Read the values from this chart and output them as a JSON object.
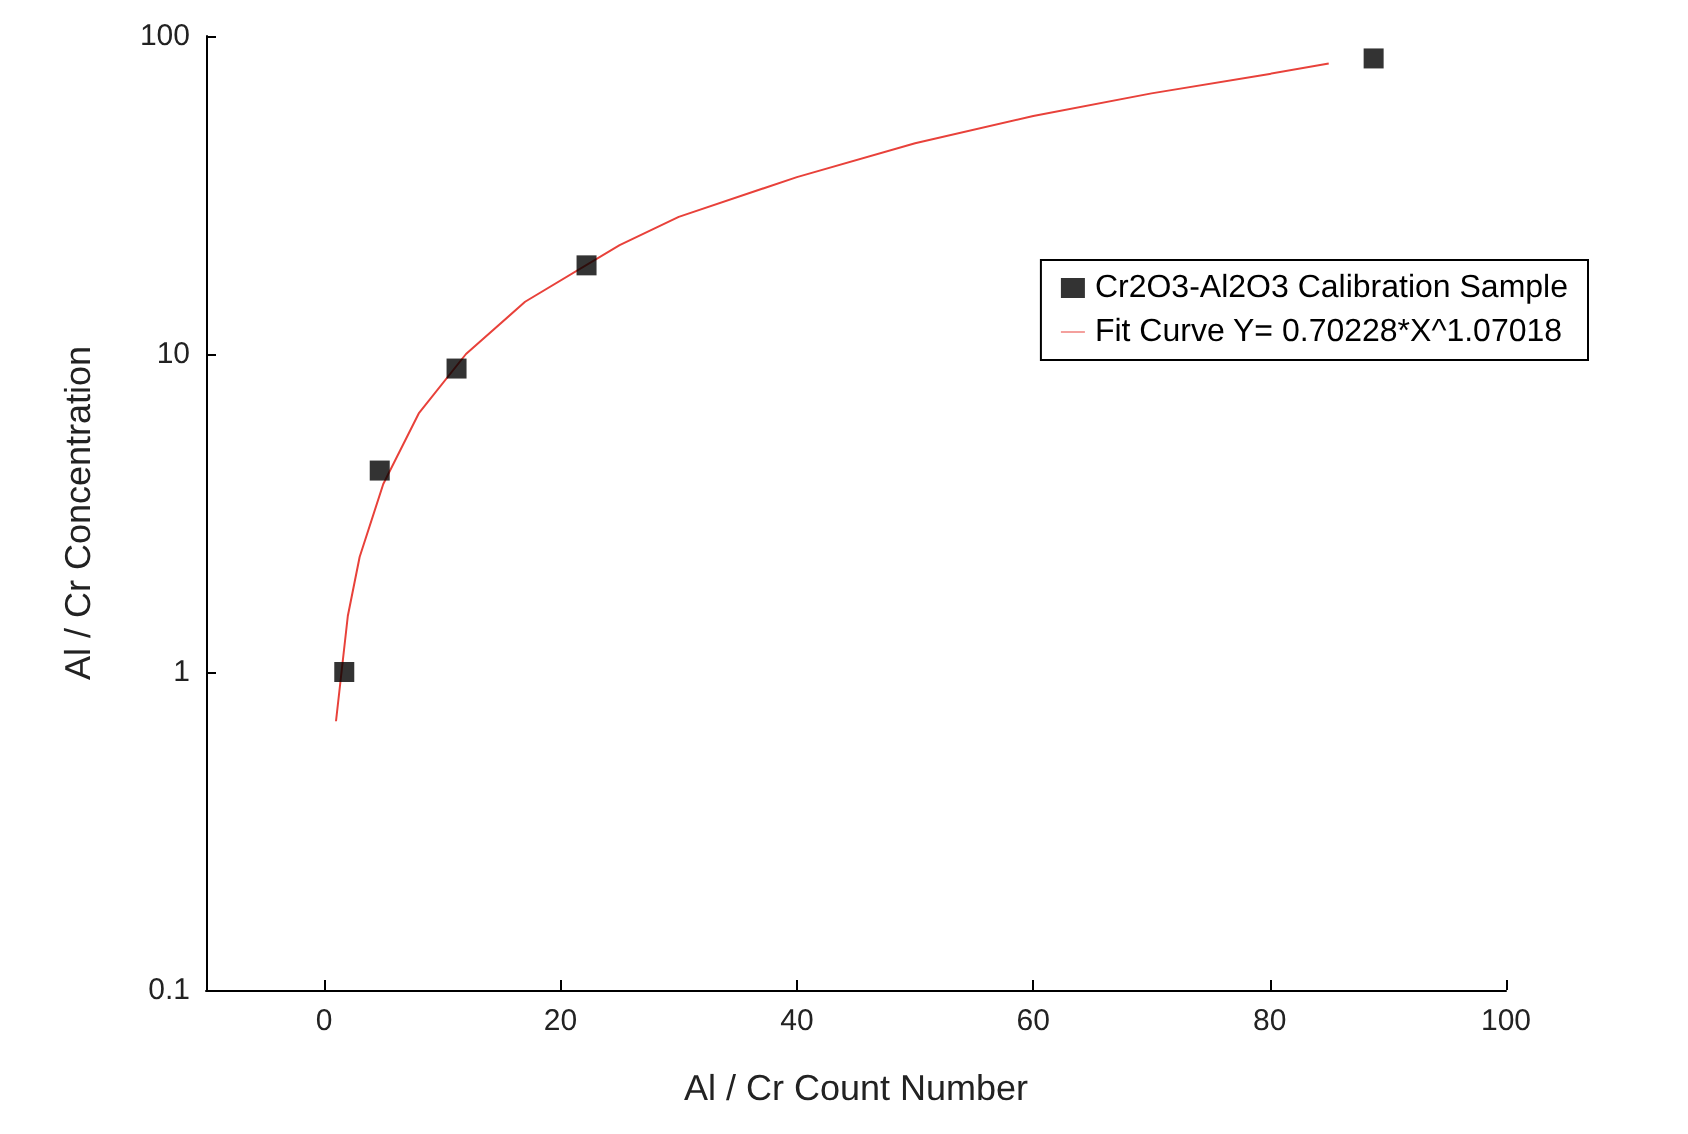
{
  "chart_data": {
    "type": "scatter",
    "xlabel": "Al / Cr Count Number",
    "ylabel": "Al / Cr Concentration",
    "log": "y",
    "grid": false,
    "legend": "top right",
    "marker": "square",
    "xlim": [
      -10,
      100
    ],
    "xticks": [
      0,
      20,
      40,
      60,
      80,
      100
    ],
    "ylim": [
      0.1,
      100
    ],
    "yticks": [
      0.1,
      1,
      10,
      100
    ],
    "series": [
      {
        "name": "Cr2O3-Al2O3 Calibration Sample",
        "type": "scatter",
        "color": "#000000",
        "x": [
          1.7,
          4.7,
          11.2,
          22.2,
          88.8
        ],
        "values": [
          1.0,
          4.3,
          9.0,
          19,
          85
        ]
      },
      {
        "name": "Fit Curve Y= 0.70228*X^1.07018",
        "type": "line",
        "marker": "none",
        "color": "#e8413a",
        "x": [
          1,
          2,
          3,
          5,
          8,
          12,
          17,
          25,
          30,
          40,
          50,
          60,
          70,
          80,
          85
        ],
        "values": [
          0.7,
          1.5,
          2.3,
          3.9,
          6.5,
          10,
          14.6,
          22,
          27,
          36,
          46,
          56,
          66,
          76,
          82
        ]
      }
    ]
  }
}
